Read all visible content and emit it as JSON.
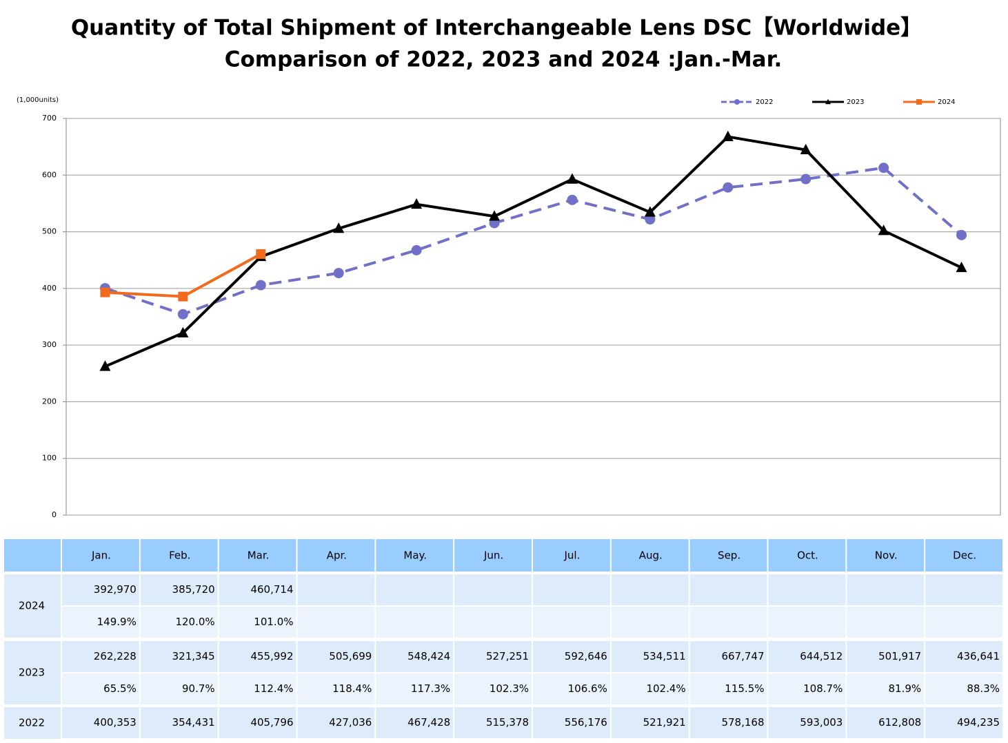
{
  "chart_data": {
    "type": "line",
    "title": "Quantity of Total Shipment of Interchangeable Lens DSC【Worldwide】",
    "subtitle": "Comparison of 2022, 2023 and 2024 :Jan.-Mar.",
    "y_label": "(1,000units)",
    "categories": [
      "Jan.",
      "Feb.",
      "Mar.",
      "Apr.",
      "May.",
      "Jun.",
      "Jul.",
      "Aug.",
      "Sep.",
      "Oct.",
      "Nov.",
      "Dec."
    ],
    "ylim": [
      0,
      700
    ],
    "yticks": [
      0,
      100,
      200,
      300,
      400,
      500,
      600,
      700
    ],
    "grid": true,
    "legend": "top-right",
    "series": [
      {
        "name": "2022",
        "color": "#7070c8",
        "marker": "circle",
        "dashed": true,
        "values": [
          400.353,
          354.431,
          405.796,
          427.036,
          467.428,
          515.378,
          556.176,
          521.921,
          578.168,
          593.003,
          612.808,
          494.235
        ],
        "value_labels": [
          "400,353",
          "354,431",
          "405,796",
          "427,036",
          "467,428",
          "515,378",
          "556,176",
          "521,921",
          "578,168",
          "593,003",
          "612,808",
          "494,235"
        ]
      },
      {
        "name": "2023",
        "color": "#000000",
        "marker": "triangle",
        "dashed": false,
        "values": [
          262.228,
          321.345,
          455.992,
          505.699,
          548.424,
          527.251,
          592.646,
          534.511,
          667.747,
          644.512,
          501.917,
          436.641
        ],
        "value_labels": [
          "262,228",
          "321,345",
          "455,992",
          "505,699",
          "548,424",
          "527,251",
          "592,646",
          "534,511",
          "667,747",
          "644,512",
          "501,917",
          "436,641"
        ],
        "ratio_labels": [
          "65.5%",
          "90.7%",
          "112.4%",
          "118.4%",
          "117.3%",
          "102.3%",
          "106.6%",
          "102.4%",
          "115.5%",
          "108.7%",
          "81.9%",
          "88.3%"
        ]
      },
      {
        "name": "2024",
        "color": "#f26b1d",
        "marker": "square",
        "dashed": false,
        "values": [
          392.97,
          385.72,
          460.714,
          null,
          null,
          null,
          null,
          null,
          null,
          null,
          null,
          null
        ],
        "value_labels": [
          "392,970",
          "385,720",
          "460,714",
          null,
          null,
          null,
          null,
          null,
          null,
          null,
          null,
          null
        ],
        "ratio_labels": [
          "149.9%",
          "120.0%",
          "101.0%",
          null,
          null,
          null,
          null,
          null,
          null,
          null,
          null,
          null
        ]
      }
    ]
  }
}
